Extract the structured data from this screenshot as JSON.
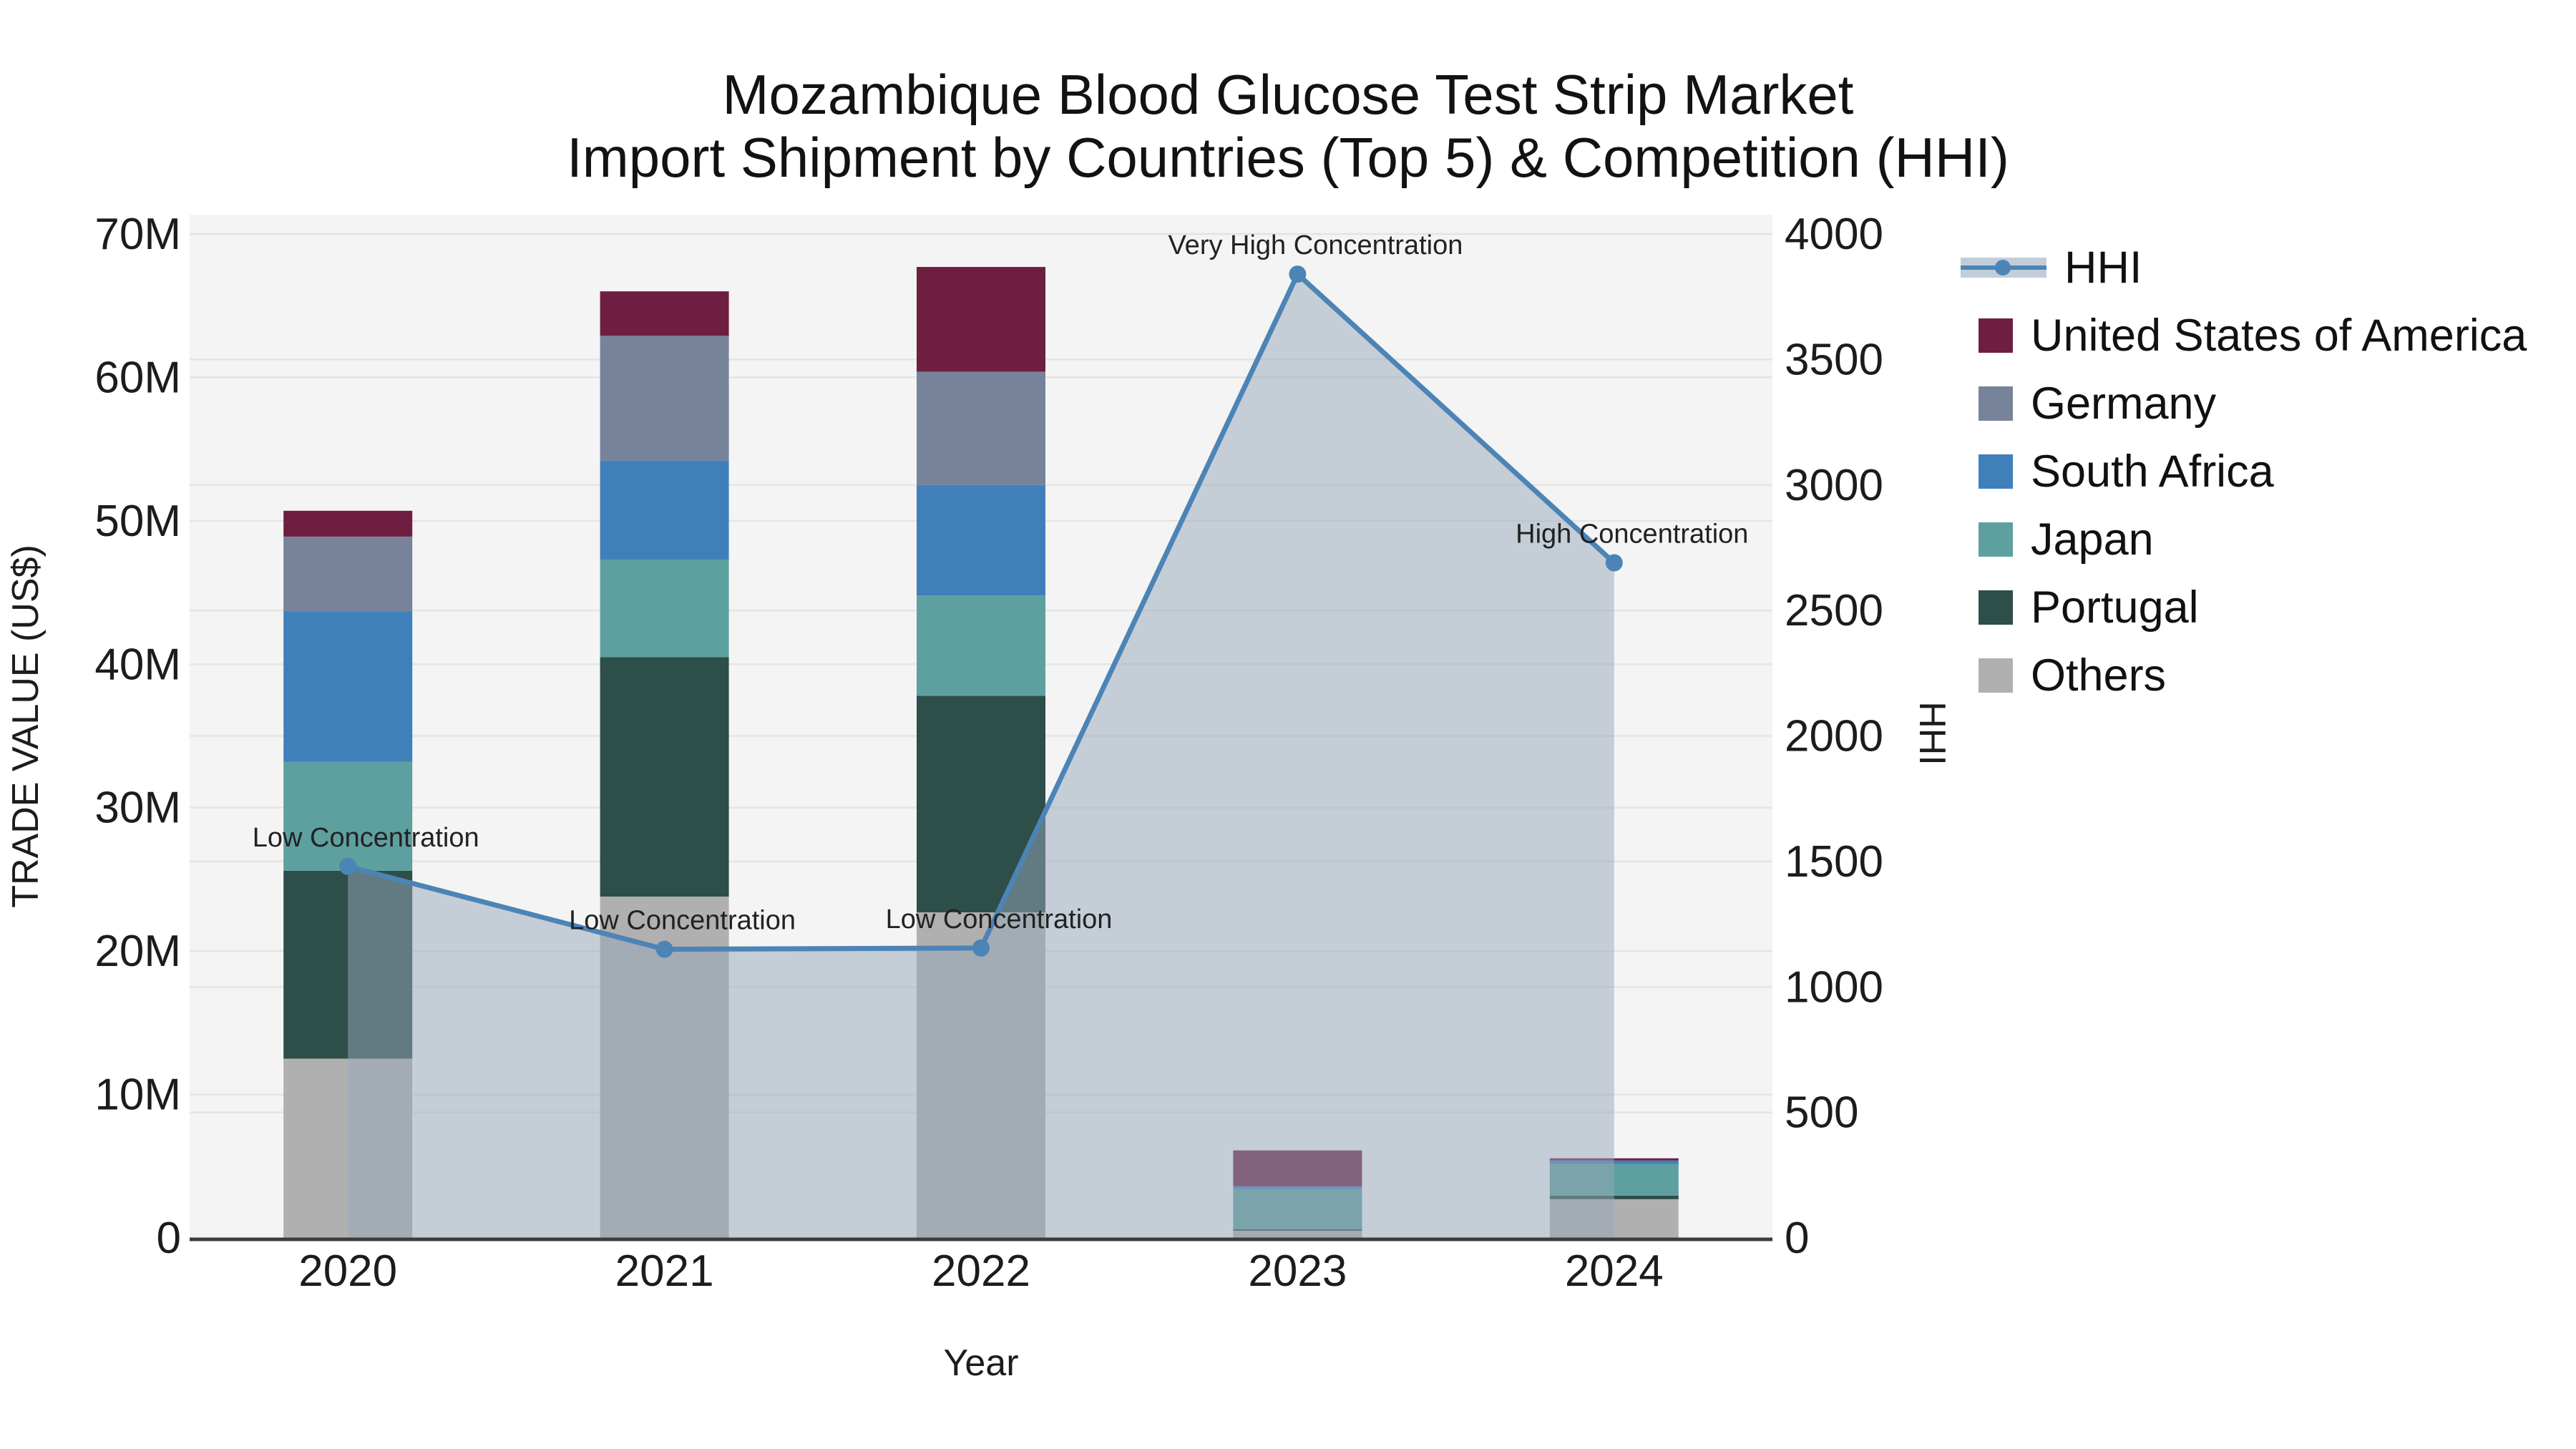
{
  "title": {
    "line1": "Mozambique Blood Glucose Test Strip Market",
    "line2": "Import Shipment by Countries (Top 5) & Competition (HHI)"
  },
  "legend": {
    "items": [
      {
        "label": "HHI",
        "type": "line"
      },
      {
        "label": "United States of America",
        "type": "square",
        "color": "#6e1e41"
      },
      {
        "label": "Germany",
        "type": "square",
        "color": "#76839a"
      },
      {
        "label": "South Africa",
        "type": "square",
        "color": "#4080ba"
      },
      {
        "label": "Japan",
        "type": "square",
        "color": "#5ea09f"
      },
      {
        "label": "Portugal",
        "type": "square",
        "color": "#2e4e49"
      },
      {
        "label": "Others",
        "type": "square",
        "color": "#b0b0b0"
      }
    ]
  },
  "colors": {
    "hhi_line": "#4c84b6",
    "hhi_area": "rgba(150,165,186,0.5)",
    "plot_background": "#f4f4f4",
    "gridline": "#e4e4e4",
    "axis_line": "#3c3c3c",
    "tick_text": "#1c1c1c",
    "annotation_text": "#222222"
  },
  "chart_data": {
    "type": "bar",
    "subtype": "stacked-bars-with-line",
    "title": "Mozambique Blood Glucose Test Strip Market Import Shipment by Countries (Top 5) & Competition (HHI)",
    "categories": [
      "2020",
      "2021",
      "2022",
      "2023",
      "2024"
    ],
    "x_axis": {
      "label": "Year"
    },
    "left_axis": {
      "label": "TRADE VALUE (US$)",
      "unit": "M US$",
      "min": 0,
      "max": 70,
      "ticks": [
        {
          "value": 0,
          "label": "0"
        },
        {
          "value": 10,
          "label": "10M"
        },
        {
          "value": 20,
          "label": "20M"
        },
        {
          "value": 30,
          "label": "30M"
        },
        {
          "value": 40,
          "label": "40M"
        },
        {
          "value": 50,
          "label": "50M"
        },
        {
          "value": 60,
          "label": "60M"
        },
        {
          "value": 70,
          "label": "70M"
        }
      ]
    },
    "right_axis": {
      "label": "HHI",
      "min": 0,
      "max": 4000,
      "ticks": [
        {
          "value": 0,
          "label": "0"
        },
        {
          "value": 500,
          "label": "500"
        },
        {
          "value": 1000,
          "label": "1000"
        },
        {
          "value": 1500,
          "label": "1500"
        },
        {
          "value": 2000,
          "label": "2000"
        },
        {
          "value": 2500,
          "label": "2500"
        },
        {
          "value": 3000,
          "label": "3000"
        },
        {
          "value": 3500,
          "label": "3500"
        },
        {
          "value": 4000,
          "label": "4000"
        }
      ]
    },
    "series": [
      {
        "name": "Others",
        "color": "#b0b0b0",
        "values": [
          12.5,
          23.8,
          22.7,
          0.5,
          2.7
        ]
      },
      {
        "name": "Portugal",
        "color": "#2e4e49",
        "values": [
          13.1,
          16.7,
          15.1,
          0.1,
          0.25
        ]
      },
      {
        "name": "Japan",
        "color": "#5ea09f",
        "values": [
          7.6,
          6.8,
          7.0,
          2.8,
          2.2
        ]
      },
      {
        "name": "South Africa",
        "color": "#4080ba",
        "values": [
          10.5,
          6.9,
          7.7,
          0.2,
          0.25
        ]
      },
      {
        "name": "Germany",
        "color": "#76839a",
        "values": [
          5.2,
          8.7,
          7.9,
          0.0,
          0.0
        ]
      },
      {
        "name": "United States of America",
        "color": "#6e1e41",
        "values": [
          1.8,
          3.1,
          7.3,
          2.5,
          0.15
        ]
      }
    ],
    "line_series": {
      "name": "HHI",
      "axis": "right",
      "values": [
        1480,
        1150,
        1155,
        3840,
        2690
      ]
    },
    "annotations": [
      {
        "category": "2020",
        "text": "Low Concentration"
      },
      {
        "category": "2021",
        "text": "Low Concentration"
      },
      {
        "category": "2022",
        "text": "Low Concentration"
      },
      {
        "category": "2023",
        "text": "Very High Concentration"
      },
      {
        "category": "2024",
        "text": "High Concentration"
      }
    ],
    "legend_order": [
      "HHI",
      "United States of America",
      "Germany",
      "South Africa",
      "Japan",
      "Portugal",
      "Others"
    ],
    "grid": "on",
    "legend_position": "right"
  }
}
